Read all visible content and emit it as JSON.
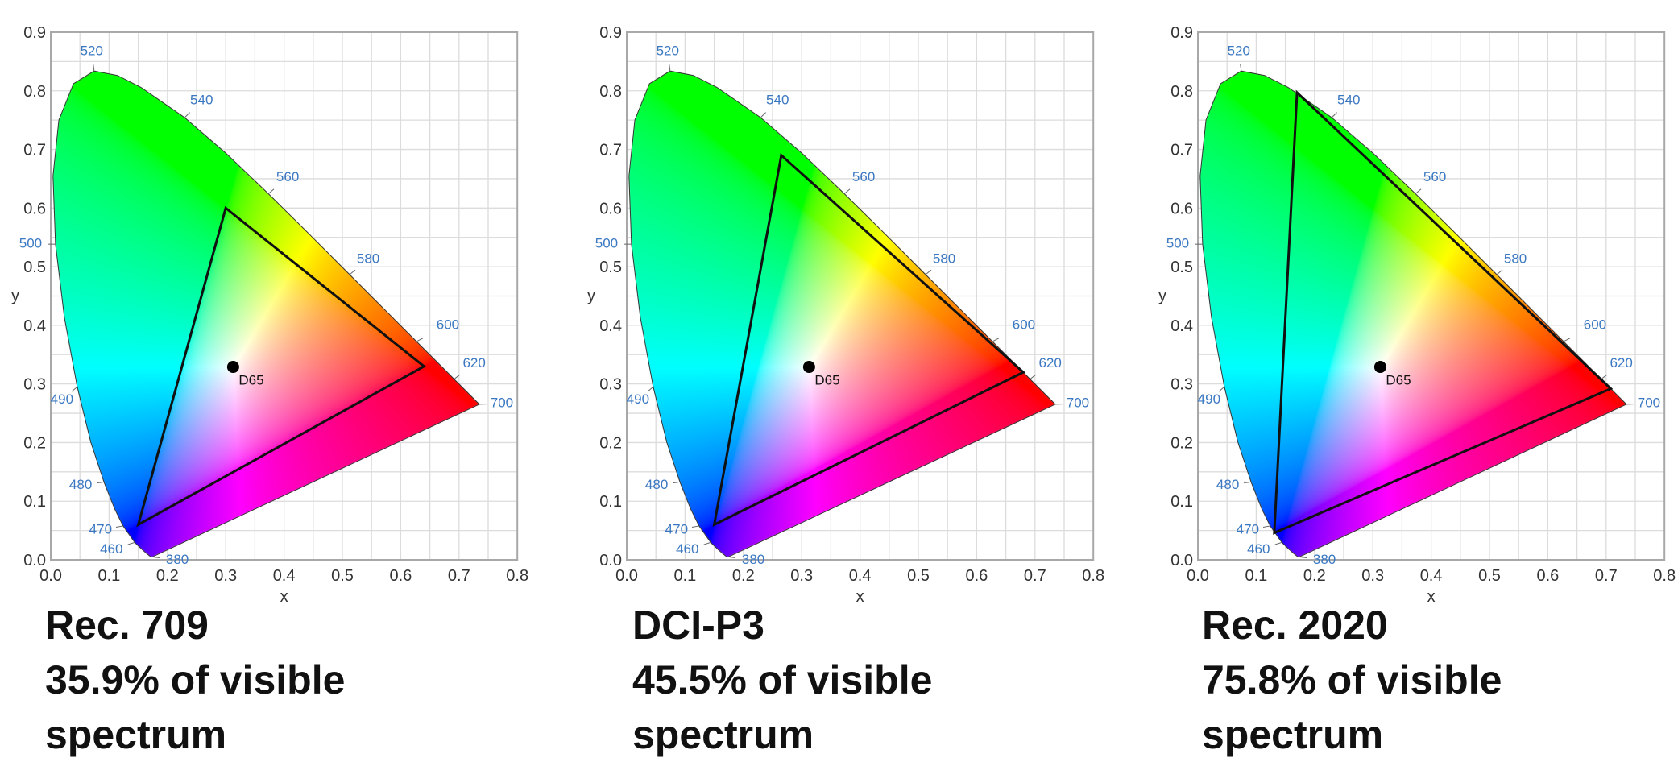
{
  "chart_data": [
    {
      "type": "scatter",
      "title": "Rec. 709",
      "caption_lines": [
        "35.9% of visible",
        "spectrum"
      ],
      "xlabel": "x",
      "ylabel": "y",
      "xlim": [
        0,
        0.8
      ],
      "ylim": [
        0,
        0.9
      ],
      "x_ticks": [
        "0.0",
        "0.1",
        "0.2",
        "0.3",
        "0.4",
        "0.5",
        "0.6",
        "0.7",
        "0.8"
      ],
      "y_ticks": [
        "0.0",
        "0.1",
        "0.2",
        "0.3",
        "0.4",
        "0.5",
        "0.6",
        "0.7",
        "0.8",
        "0.9"
      ],
      "grid": true,
      "gamut_triangle": [
        [
          0.64,
          0.33
        ],
        [
          0.3,
          0.6
        ],
        [
          0.15,
          0.06
        ]
      ],
      "white_point": {
        "label": "D65",
        "x": 0.3127,
        "y": 0.329
      }
    },
    {
      "type": "scatter",
      "title": "DCI-P3",
      "caption_lines": [
        "45.5% of visible",
        "spectrum"
      ],
      "xlabel": "x",
      "ylabel": "y",
      "xlim": [
        0,
        0.8
      ],
      "ylim": [
        0,
        0.9
      ],
      "x_ticks": [
        "0.0",
        "0.1",
        "0.2",
        "0.3",
        "0.4",
        "0.5",
        "0.6",
        "0.7",
        "0.8"
      ],
      "y_ticks": [
        "0.0",
        "0.1",
        "0.2",
        "0.3",
        "0.4",
        "0.5",
        "0.6",
        "0.7",
        "0.8",
        "0.9"
      ],
      "grid": true,
      "gamut_triangle": [
        [
          0.68,
          0.32
        ],
        [
          0.265,
          0.69
        ],
        [
          0.15,
          0.06
        ]
      ],
      "white_point": {
        "label": "D65",
        "x": 0.3127,
        "y": 0.329
      }
    },
    {
      "type": "scatter",
      "title": "Rec. 2020",
      "caption_lines": [
        "75.8% of visible",
        "spectrum"
      ],
      "xlabel": "x",
      "ylabel": "y",
      "xlim": [
        0,
        0.8
      ],
      "ylim": [
        0,
        0.9
      ],
      "x_ticks": [
        "0.0",
        "0.1",
        "0.2",
        "0.3",
        "0.4",
        "0.5",
        "0.6",
        "0.7",
        "0.8"
      ],
      "y_ticks": [
        "0.0",
        "0.1",
        "0.2",
        "0.3",
        "0.4",
        "0.5",
        "0.6",
        "0.7",
        "0.8",
        "0.9"
      ],
      "grid": true,
      "gamut_triangle": [
        [
          0.708,
          0.292
        ],
        [
          0.17,
          0.797
        ],
        [
          0.131,
          0.046
        ]
      ],
      "white_point": {
        "label": "D65",
        "x": 0.3127,
        "y": 0.329
      }
    }
  ],
  "spectral_locus": [
    [
      380,
      0.1741,
      0.005
    ],
    [
      420,
      0.1714,
      0.0051
    ],
    [
      440,
      0.1644,
      0.0109
    ],
    [
      450,
      0.1566,
      0.0177
    ],
    [
      460,
      0.144,
      0.0297
    ],
    [
      470,
      0.1241,
      0.0578
    ],
    [
      475,
      0.1096,
      0.0868
    ],
    [
      480,
      0.0913,
      0.1327
    ],
    [
      485,
      0.0687,
      0.2007
    ],
    [
      490,
      0.0454,
      0.295
    ],
    [
      495,
      0.0235,
      0.4127
    ],
    [
      500,
      0.0082,
      0.5384
    ],
    [
      505,
      0.0039,
      0.6548
    ],
    [
      510,
      0.0139,
      0.7502
    ],
    [
      515,
      0.0389,
      0.812
    ],
    [
      520,
      0.0743,
      0.8338
    ],
    [
      525,
      0.1142,
      0.8262
    ],
    [
      530,
      0.1547,
      0.8059
    ],
    [
      540,
      0.2296,
      0.7543
    ],
    [
      550,
      0.3016,
      0.6923
    ],
    [
      560,
      0.3731,
      0.6245
    ],
    [
      570,
      0.4441,
      0.5547
    ],
    [
      580,
      0.5125,
      0.4866
    ],
    [
      590,
      0.5752,
      0.4242
    ],
    [
      600,
      0.627,
      0.3725
    ],
    [
      610,
      0.6658,
      0.334
    ],
    [
      620,
      0.6915,
      0.3083
    ],
    [
      640,
      0.719,
      0.2809
    ],
    [
      660,
      0.73,
      0.27
    ],
    [
      700,
      0.7347,
      0.2653
    ]
  ],
  "wavelength_labels": [
    "380",
    "460",
    "470",
    "480",
    "490",
    "500",
    "520",
    "540",
    "560",
    "580",
    "600",
    "620",
    "700"
  ],
  "colors": {
    "wavelength_label": "#3b78c2",
    "grid": "#dcdcdc",
    "frame": "#a8a8a8",
    "gamut_outline": "#111111",
    "white_point": "#000000"
  }
}
